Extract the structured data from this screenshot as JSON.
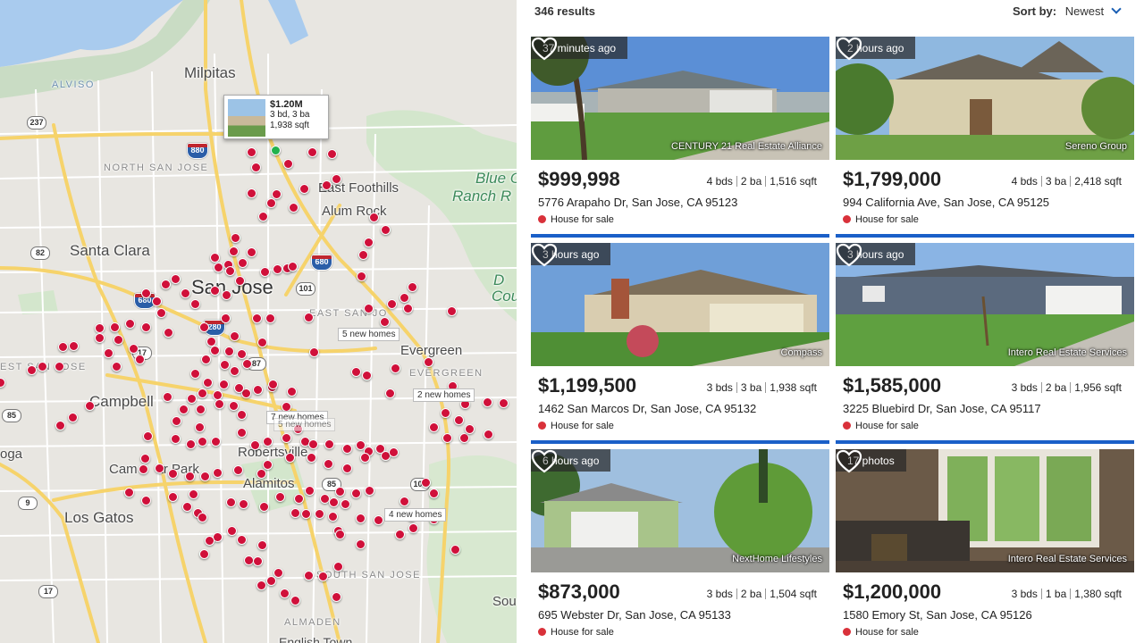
{
  "map": {
    "labels": {
      "milpitas": "Milpitas",
      "alviso": "ALVISO",
      "north_san_jose": "NORTH SAN JOSE",
      "east_foothills": "East Foothills",
      "alum_rock": "Alum Rock",
      "blue_oak": "Blue O",
      "ranch_r": "Ranch R",
      "santa_clara": "Santa Clara",
      "san_jose": "San Jose",
      "east_san_jose": "EAST SAN JO",
      "evergreen": "Evergreen",
      "evergreen_caps": "EVERGREEN",
      "west_san_jose": "EST SAN JOSE",
      "campbell": "Campbell",
      "campbell_park": "Cam     ar Park",
      "robertsville": "Robertsville",
      "alamitos": "Alamitos",
      "los_gatos": "Los Gatos",
      "south_san_jose": "SOUTH SAN JOSE",
      "almaden": "ALMADEN",
      "english_town": "English Town",
      "oga": "oga",
      "sou": "Sou",
      "cou": "Cou",
      "d": "D"
    },
    "highways": {
      "h237": "237",
      "h880_top": "880",
      "h82": "82",
      "h680_a": "680",
      "h680_b": "680",
      "h101": "101",
      "h280": "280",
      "h17": "17",
      "h87": "87",
      "h85": "85",
      "h85b": "85",
      "h9": "9",
      "h17b": "17",
      "h101b": "101"
    },
    "clusters": {
      "c1": "5 new homes",
      "c2": "2 new homes",
      "c3": "7 new homes",
      "c4": "5 new homes",
      "c5": "4 new homes"
    },
    "popup": {
      "price": "$1.20M",
      "beds_baths": "3 bd, 3 ba",
      "sqft": "1,938 sqft"
    }
  },
  "listings_header": {
    "results": "346 results",
    "sort_label": "Sort by:",
    "sort_value": "Newest"
  },
  "listings": [
    {
      "badge": "37 minutes ago",
      "broker": "CENTURY 21 Real Estate Alliance",
      "price": "$999,998",
      "beds": "4 bds",
      "baths": "2 ba",
      "sqft": "1,516 sqft",
      "address": "5776 Arapaho Dr, San Jose, CA 95123",
      "status": "House for sale"
    },
    {
      "badge": "2 hours ago",
      "broker": "Sereno Group",
      "price": "$1,799,000",
      "beds": "4 bds",
      "baths": "3 ba",
      "sqft": "2,418 sqft",
      "address": "994 California Ave, San Jose, CA 95125",
      "status": "House for sale"
    },
    {
      "badge": "3 hours ago",
      "broker": "Compass",
      "price": "$1,199,500",
      "beds": "3 bds",
      "baths": "3 ba",
      "sqft": "1,938 sqft",
      "address": "1462 San Marcos Dr, San Jose, CA 95132",
      "status": "House for sale"
    },
    {
      "badge": "3 hours ago",
      "broker": "Intero Real Estate Services",
      "price": "$1,585,000",
      "beds": "3 bds",
      "baths": "2 ba",
      "sqft": "1,956 sqft",
      "address": "3225 Bluebird Dr, San Jose, CA 95117",
      "status": "House for sale"
    },
    {
      "badge": "6 hours ago",
      "broker": "NextHome Lifestyles",
      "price": "$873,000",
      "beds": "3 bds",
      "baths": "2 ba",
      "sqft": "1,504 sqft",
      "address": "695 Webster Dr, San Jose, CA 95133",
      "status": "House for sale"
    },
    {
      "badge": "17 photos",
      "broker": "Intero Real Estate Services",
      "price": "$1,200,000",
      "beds": "3 bds",
      "baths": "1 ba",
      "sqft": "1,380 sqft",
      "address": "1580 Emory St, San Jose, CA 95126",
      "status": "House for sale"
    }
  ],
  "colors": {
    "pin": "#d0103a",
    "active_pin": "#22b24c",
    "accent_blue": "#1a5fc8",
    "status_dot": "#d9313a"
  },
  "icons": {
    "favorite": "heart-outline-icon",
    "sort": "chevron-down-icon"
  }
}
